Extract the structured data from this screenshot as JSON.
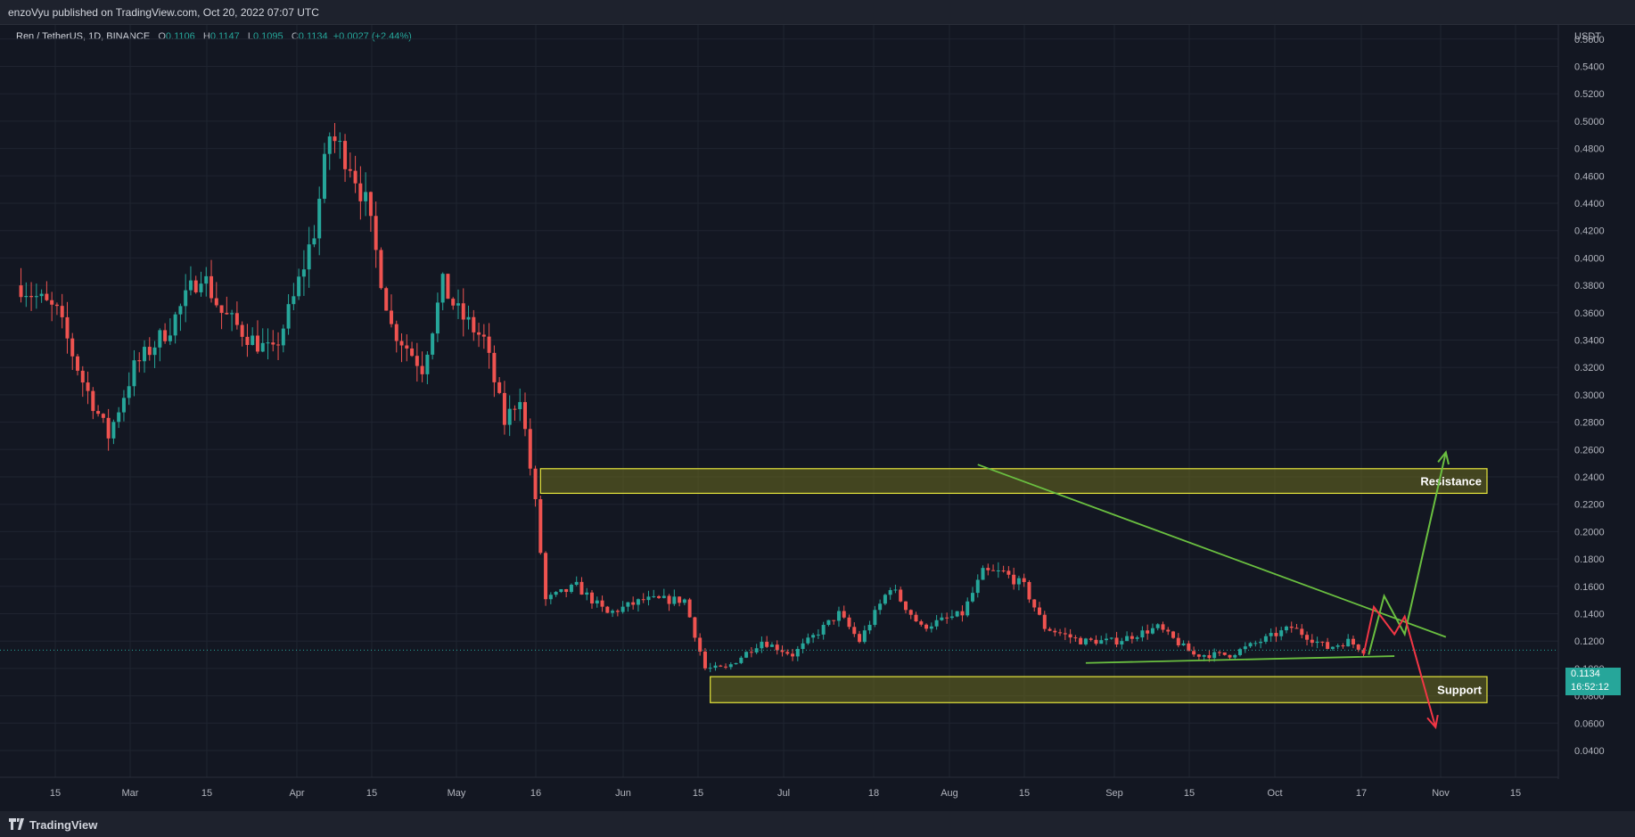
{
  "header": {
    "publisher_text": "enzoVyu published on TradingView.com, Oct 20, 2022 07:07 UTC"
  },
  "footer": {
    "brand": "TradingView"
  },
  "legend": {
    "symbol": "Ren / TetherUS, 1D, BINANCE",
    "open_label": "O",
    "open": "0.1106",
    "high_label": "H",
    "high": "0.1147",
    "low_label": "L",
    "low": "0.1095",
    "close_label": "C",
    "close": "0.1134",
    "change": "+0.0027 (+2.44%)"
  },
  "price_axis": {
    "unit": "USDT"
  },
  "price_tag": {
    "price": "0.1134",
    "countdown": "16:52:12"
  },
  "colors": {
    "up": "#26a69a",
    "down": "#ef5350",
    "zone_border": "#e6e63c",
    "zone_fill": "#6b6b1f",
    "trend": "#6abf40",
    "bear_path": "#f23645",
    "bg": "#131722",
    "grid": "#1f2430"
  },
  "chart_data": {
    "type": "candlestick",
    "ylim": [
      0.04,
      0.56
    ],
    "y_ticks": [
      "0.5600",
      "0.5400",
      "0.5200",
      "0.5000",
      "0.4800",
      "0.4600",
      "0.4400",
      "0.4200",
      "0.4000",
      "0.3800",
      "0.3600",
      "0.3400",
      "0.3200",
      "0.3000",
      "0.2800",
      "0.2600",
      "0.2400",
      "0.2200",
      "0.2000",
      "0.1800",
      "0.1600",
      "0.1400",
      "0.1200",
      "0.1000",
      "0.0800",
      "0.0600",
      "0.0400"
    ],
    "x_ticks": [
      "15",
      "Mar",
      "15",
      "Apr",
      "15",
      "May",
      "16",
      "Jun",
      "15",
      "Jul",
      "18",
      "Aug",
      "15",
      "Sep",
      "15",
      "Oct",
      "17",
      "Nov",
      "15"
    ],
    "path_keypoints": [
      [
        "2022-02-01",
        0.38
      ],
      [
        "2022-02-08",
        0.36
      ],
      [
        "2022-02-13",
        0.31
      ],
      [
        "2022-02-18",
        0.27
      ],
      [
        "2022-02-23",
        0.32
      ],
      [
        "2022-03-02",
        0.35
      ],
      [
        "2022-03-08",
        0.39
      ],
      [
        "2022-03-12",
        0.36
      ],
      [
        "2022-03-18",
        0.34
      ],
      [
        "2022-03-22",
        0.33
      ],
      [
        "2022-03-26",
        0.37
      ],
      [
        "2022-03-30",
        0.42
      ],
      [
        "2022-04-02",
        0.49
      ],
      [
        "2022-04-06",
        0.47
      ],
      [
        "2022-04-09",
        0.44
      ],
      [
        "2022-04-14",
        0.35
      ],
      [
        "2022-04-20",
        0.32
      ],
      [
        "2022-04-24",
        0.38
      ],
      [
        "2022-04-27",
        0.36
      ],
      [
        "2022-05-02",
        0.34
      ],
      [
        "2022-05-06",
        0.28
      ],
      [
        "2022-05-09",
        0.3
      ],
      [
        "2022-05-12",
        0.22
      ],
      [
        "2022-05-14",
        0.15
      ],
      [
        "2022-05-20",
        0.16
      ],
      [
        "2022-05-26",
        0.14
      ],
      [
        "2022-06-02",
        0.15
      ],
      [
        "2022-06-10",
        0.15
      ],
      [
        "2022-06-14",
        0.1
      ],
      [
        "2022-06-18",
        0.1
      ],
      [
        "2022-06-25",
        0.12
      ],
      [
        "2022-07-01",
        0.11
      ],
      [
        "2022-07-10",
        0.14
      ],
      [
        "2022-07-14",
        0.12
      ],
      [
        "2022-07-20",
        0.16
      ],
      [
        "2022-07-26",
        0.13
      ],
      [
        "2022-08-03",
        0.14
      ],
      [
        "2022-08-07",
        0.17
      ],
      [
        "2022-08-11",
        0.17
      ],
      [
        "2022-08-15",
        0.16
      ],
      [
        "2022-08-19",
        0.13
      ],
      [
        "2022-08-26",
        0.12
      ],
      [
        "2022-09-02",
        0.12
      ],
      [
        "2022-09-10",
        0.13
      ],
      [
        "2022-09-17",
        0.11
      ],
      [
        "2022-09-24",
        0.11
      ],
      [
        "2022-09-30",
        0.12
      ],
      [
        "2022-10-06",
        0.13
      ],
      [
        "2022-10-13",
        0.115
      ],
      [
        "2022-10-17",
        0.12
      ],
      [
        "2022-10-20",
        0.1134
      ]
    ],
    "zones": [
      {
        "name": "Resistance",
        "label": "Resistance",
        "start": "2022-05-13",
        "end": "2022-11-13",
        "y_low": 0.228,
        "y_high": 0.246
      },
      {
        "name": "Support",
        "label": "Support",
        "start": "2022-06-15",
        "end": "2022-11-13",
        "y_low": 0.075,
        "y_high": 0.094
      }
    ],
    "trendlines": [
      {
        "name": "descending-resistance",
        "from": [
          "2022-08-06",
          0.249
        ],
        "to": [
          "2022-11-05",
          0.123
        ]
      },
      {
        "name": "ascending-support",
        "from": [
          "2022-08-27",
          0.104
        ],
        "to": [
          "2022-10-26",
          0.109
        ]
      }
    ],
    "projections": [
      {
        "name": "bullish-path",
        "points": [
          [
            "2022-10-21",
            0.11
          ],
          [
            "2022-10-24",
            0.153
          ],
          [
            "2022-10-28",
            0.125
          ],
          [
            "2022-11-05",
            0.258
          ]
        ]
      },
      {
        "name": "bearish-path",
        "points": [
          [
            "2022-10-20",
            0.11
          ],
          [
            "2022-10-22",
            0.145
          ],
          [
            "2022-10-26",
            0.125
          ],
          [
            "2022-10-28",
            0.138
          ],
          [
            "2022-11-03",
            0.057
          ]
        ]
      }
    ]
  }
}
